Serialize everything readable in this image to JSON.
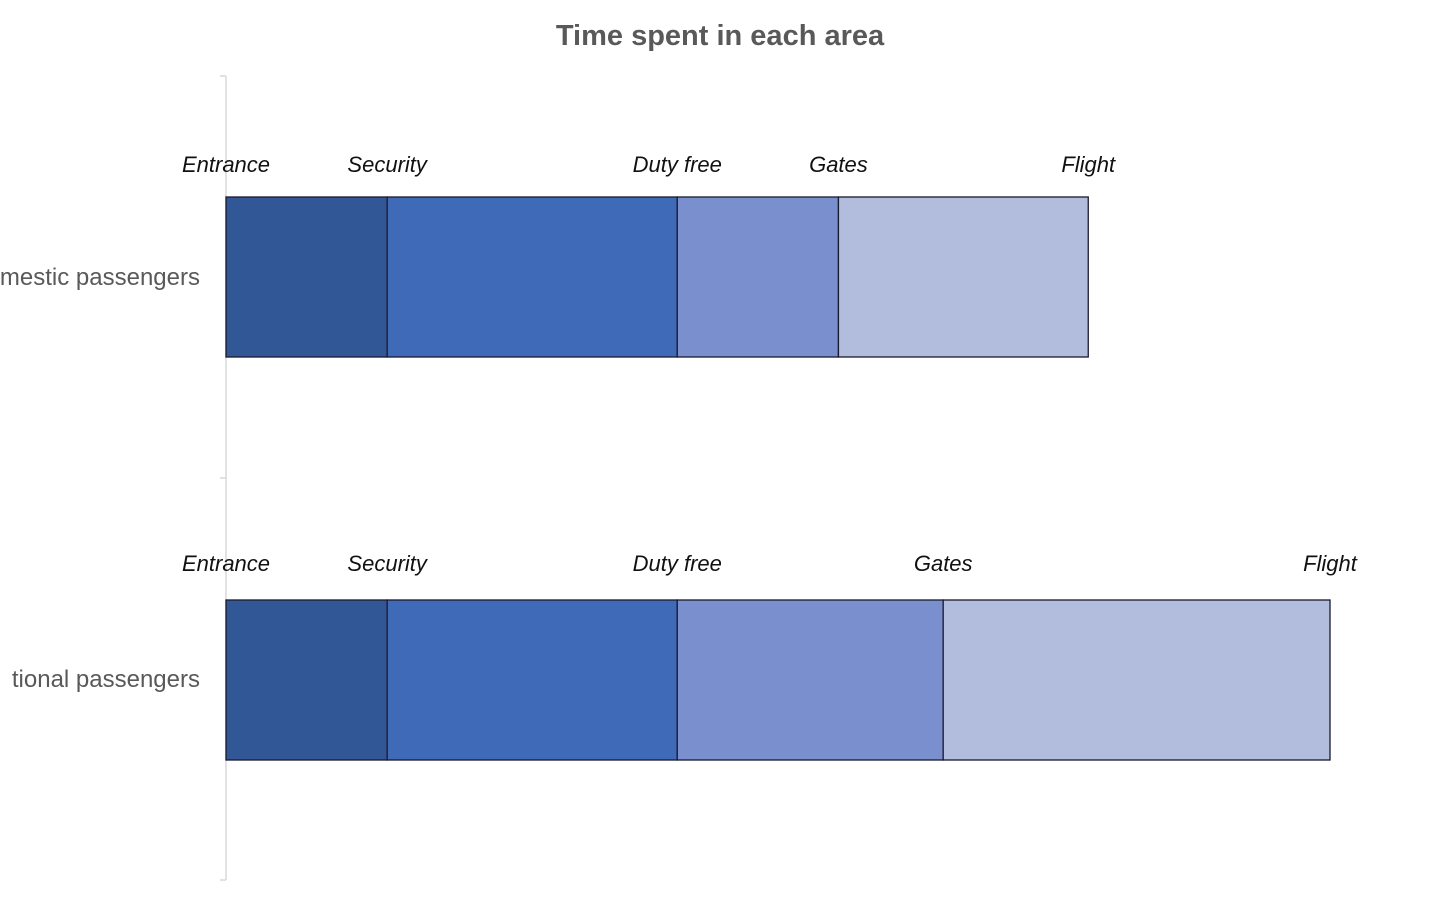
{
  "chart_data": {
    "type": "bar",
    "subtype": "stacked-horizontal",
    "title": "Time spent in each area",
    "xlabel": "",
    "ylabel": "",
    "grid": false,
    "legend": "none",
    "categories": [
      "Domestic passengers",
      "International passengers"
    ],
    "visible_category_labels": [
      "mestic passengers",
      "tional passengers"
    ],
    "series": [
      {
        "values": [
          20,
          20
        ],
        "color": "#325797"
      },
      {
        "values": [
          36,
          36
        ],
        "color": "#3f6ab8"
      },
      {
        "values": [
          20,
          33
        ],
        "color": "#7a90ce"
      },
      {
        "values": [
          31,
          48
        ],
        "color": "#b2bcdd"
      }
    ],
    "milestone_labels": [
      [
        "Entrance",
        "Security",
        "Duty free",
        "Gates",
        "Flight"
      ],
      [
        "Entrance",
        "Security",
        "Duty free",
        "Gates",
        "Flight"
      ]
    ],
    "xlim": [
      0,
      137
    ]
  }
}
